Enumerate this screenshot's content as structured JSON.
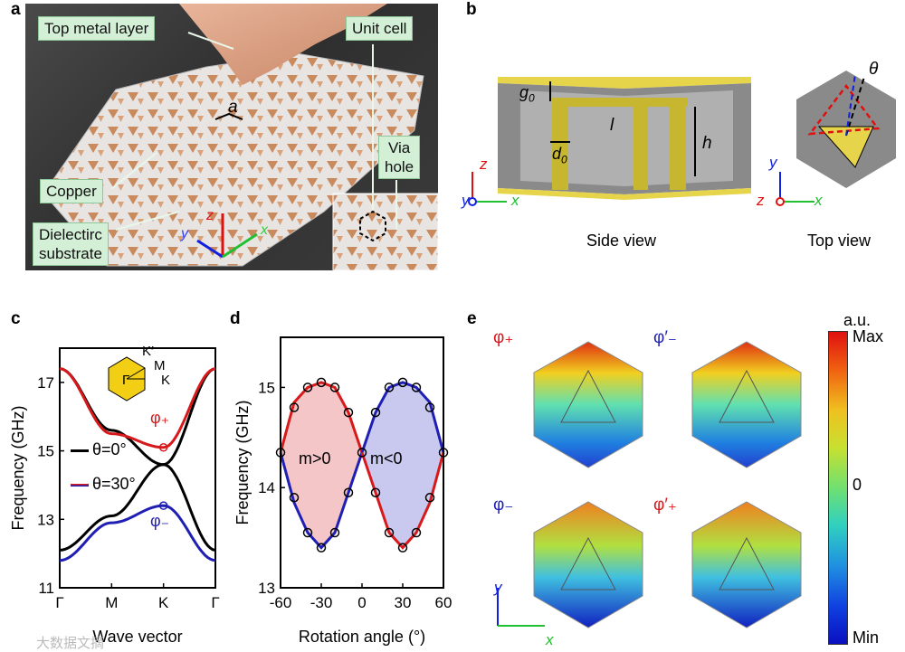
{
  "panel_a": {
    "letter": "a",
    "labels": {
      "top_metal": "Top metal layer",
      "unit_cell": "Unit cell",
      "lattice": "a",
      "via": "Via",
      "hole": "hole",
      "copper": "Copper",
      "dielectric_1": "Dielectirc",
      "dielectric_2": "substrate",
      "axis_z": "z",
      "axis_y": "y",
      "axis_x": "x"
    }
  },
  "panel_b": {
    "letter": "b",
    "side_view": "Side view",
    "top_view": "Top view",
    "g0": "g",
    "g0_sub": "0",
    "l": "l",
    "h": "h",
    "d0": "d",
    "d0_sub": "0",
    "theta": "θ",
    "axis_z": "z",
    "axis_y": "y",
    "axis_x": "x"
  },
  "panel_c": {
    "letter": "c",
    "bz_labels": {
      "kprime": "K′",
      "m": "M",
      "gamma": "Γ",
      "k": "K"
    },
    "phi_plus": "φ₊",
    "phi_minus": "φ₋",
    "legend_0": "θ=0°",
    "legend_30": "θ=30°"
  },
  "panel_d": {
    "letter": "d",
    "region_pos": "m>0",
    "region_neg": "m<0"
  },
  "panel_e": {
    "letter": "e",
    "phi_plus": "φ₊",
    "phi_prime_minus": "φ′₋",
    "phi_minus": "φ₋",
    "phi_prime_plus": "φ′₊",
    "colorbar_unit": "a.u.",
    "colorbar_max": "Max",
    "colorbar_zero": "0",
    "colorbar_min": "Min",
    "axis_y": "y",
    "axis_x": "x"
  },
  "colors": {
    "red": "#d7191c",
    "blue": "#1f1fb4",
    "black": "#000000",
    "green_callout": "#d3efd6",
    "gold": "#d9c84a"
  },
  "watermark": "大数据文摘",
  "chart_data": [
    {
      "type": "line",
      "panel": "c",
      "title": "",
      "xlabel": "Wave vector",
      "ylabel": "Frequency (GHz)",
      "categories": [
        "Γ",
        "M",
        "K",
        "Γ"
      ],
      "x": [
        0,
        1,
        2,
        3
      ],
      "ylim": [
        11,
        18
      ],
      "yticks": [
        11,
        13,
        15,
        17
      ],
      "series": [
        {
          "name": "θ=0° upper",
          "color": "#000000",
          "values": [
            17.4,
            15.6,
            14.6,
            17.4
          ]
        },
        {
          "name": "θ=0° lower",
          "color": "#000000",
          "values": [
            12.1,
            13.1,
            14.6,
            12.1
          ]
        },
        {
          "name": "θ=30° upper (φ+)",
          "color": "#d7191c",
          "values": [
            17.4,
            15.5,
            15.1,
            17.4
          ]
        },
        {
          "name": "θ=30° lower (φ-)",
          "color": "#1f1fb4",
          "values": [
            11.8,
            12.9,
            13.4,
            11.8
          ]
        }
      ],
      "markers": [
        {
          "label": "φ+",
          "x": 2,
          "y": 15.1
        },
        {
          "label": "φ-",
          "x": 2,
          "y": 13.4
        }
      ]
    },
    {
      "type": "line",
      "panel": "d",
      "xlabel": "Rotation angle (°)",
      "ylabel": "Frequency (GHz)",
      "xlim": [
        -60,
        60
      ],
      "ylim": [
        13,
        15.5
      ],
      "xticks": [
        -60,
        -30,
        0,
        30,
        60
      ],
      "yticks": [
        13,
        14,
        15
      ],
      "series": [
        {
          "name": "upper branch",
          "x": [
            -60,
            -50,
            -40,
            -30,
            -20,
            -10,
            0,
            10,
            20,
            30,
            40,
            50,
            60
          ],
          "values": [
            14.35,
            14.85,
            15.0,
            15.05,
            15.0,
            14.75,
            14.35,
            14.75,
            15.0,
            15.05,
            15.0,
            14.85,
            14.35
          ]
        },
        {
          "name": "lower branch",
          "x": [
            -60,
            -50,
            -40,
            -30,
            -20,
            -10,
            0,
            10,
            20,
            30,
            40,
            50,
            60
          ],
          "values": [
            14.35,
            13.85,
            13.55,
            13.4,
            13.55,
            13.95,
            14.35,
            13.95,
            13.55,
            13.4,
            13.55,
            13.85,
            14.35
          ]
        }
      ],
      "simulation_points": [
        {
          "x": -60,
          "y": 14.35
        },
        {
          "x": -50,
          "y": 14.8
        },
        {
          "x": -40,
          "y": 15.0
        },
        {
          "x": -30,
          "y": 15.05
        },
        {
          "x": -20,
          "y": 15.0
        },
        {
          "x": -10,
          "y": 14.75
        },
        {
          "x": 0,
          "y": 14.35
        },
        {
          "x": 10,
          "y": 14.75
        },
        {
          "x": 20,
          "y": 15.0
        },
        {
          "x": 30,
          "y": 15.05
        },
        {
          "x": 40,
          "y": 15.0
        },
        {
          "x": 50,
          "y": 14.8
        },
        {
          "x": 60,
          "y": 14.35
        },
        {
          "x": -50,
          "y": 13.9
        },
        {
          "x": -40,
          "y": 13.55
        },
        {
          "x": -30,
          "y": 13.4
        },
        {
          "x": -20,
          "y": 13.55
        },
        {
          "x": -10,
          "y": 13.95
        },
        {
          "x": 10,
          "y": 13.95
        },
        {
          "x": 20,
          "y": 13.55
        },
        {
          "x": 30,
          "y": 13.4
        },
        {
          "x": 40,
          "y": 13.55
        },
        {
          "x": 50,
          "y": 13.9
        }
      ]
    }
  ]
}
